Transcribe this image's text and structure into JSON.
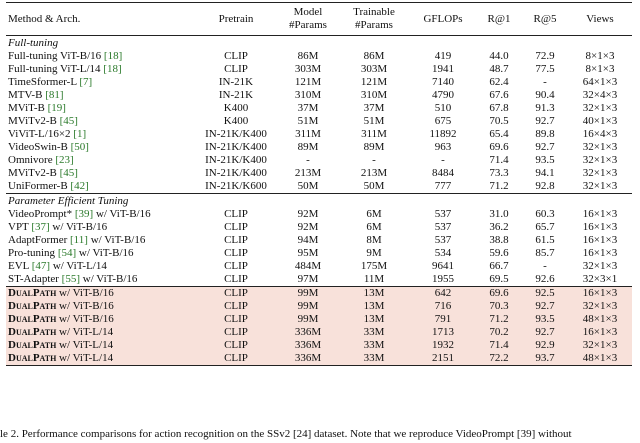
{
  "headers": [
    "Method & Arch.",
    "Pretrain",
    "Model\n#Params",
    "Trainable\n#Params",
    "GFLOPs",
    "R@1",
    "R@5",
    "Views"
  ],
  "sections": [
    {
      "title": "Full-tuning",
      "rows": [
        {
          "m": "Full-tuning ViT-B/16 ",
          "ref": "[18]",
          "pt": "CLIP",
          "mp": "86M",
          "tp": "86M",
          "gf": "419",
          "r1": "44.0",
          "r5": "72.9",
          "v": "8×1×3"
        },
        {
          "m": "Full-tuning ViT-L/14 ",
          "ref": "[18]",
          "pt": "CLIP",
          "mp": "303M",
          "tp": "303M",
          "gf": "1941",
          "r1": "48.7",
          "r5": "77.5",
          "v": "8×1×3"
        },
        {
          "m": "TimeSformer-L ",
          "ref": "[7]",
          "pt": "IN-21K",
          "mp": "121M",
          "tp": "121M",
          "gf": "7140",
          "r1": "62.4",
          "r5": "-",
          "v": "64×1×3"
        },
        {
          "m": "MTV-B ",
          "ref": "[81]",
          "pt": "IN-21K",
          "mp": "310M",
          "tp": "310M",
          "gf": "4790",
          "r1": "67.6",
          "r5": "90.4",
          "v": "32×4×3"
        },
        {
          "m": "MViT-B ",
          "ref": "[19]",
          "pt": "K400",
          "mp": "37M",
          "tp": "37M",
          "gf": "510",
          "r1": "67.8",
          "r5": "91.3",
          "v": "32×1×3"
        },
        {
          "m": "MViTv2-B ",
          "ref": "[45]",
          "pt": "K400",
          "mp": "51M",
          "tp": "51M",
          "gf": "675",
          "r1": "70.5",
          "r5": "92.7",
          "v": "40×1×3"
        },
        {
          "m": "ViViT-L/16×2 ",
          "ref": "[1]",
          "pt": "IN-21K/K400",
          "mp": "311M",
          "tp": "311M",
          "gf": "11892",
          "r1": "65.4",
          "r5": "89.8",
          "v": "16×4×3"
        },
        {
          "m": "VideoSwin-B ",
          "ref": "[50]",
          "pt": "IN-21K/K400",
          "mp": "89M",
          "tp": "89M",
          "gf": "963",
          "r1": "69.6",
          "r5": "92.7",
          "v": "32×1×3"
        },
        {
          "m": "Omnivore ",
          "ref": "[23]",
          "pt": "IN-21K/K400",
          "mp": "-",
          "tp": "-",
          "gf": "-",
          "r1": "71.4",
          "r5": "93.5",
          "v": "32×1×3"
        },
        {
          "m": "MViTv2-B ",
          "ref": "[45]",
          "pt": "IN-21K/K400",
          "mp": "213M",
          "tp": "213M",
          "gf": "8484",
          "r1": "73.3",
          "r5": "94.1",
          "v": "32×1×3"
        },
        {
          "m": "UniFormer-B ",
          "ref": "[42]",
          "pt": "IN-21K/K600",
          "mp": "50M",
          "tp": "50M",
          "gf": "777",
          "r1": "71.2",
          "r5": "92.8",
          "v": "32×1×3"
        }
      ]
    },
    {
      "title": "Parameter Efficient Tuning",
      "rows": [
        {
          "m": "VideoPrompt* ",
          "ref": "[39]",
          "suf": " w/ ViT-B/16",
          "pt": "CLIP",
          "mp": "92M",
          "tp": "6M",
          "gf": "537",
          "r1": "31.0",
          "r5": "60.3",
          "v": "16×1×3"
        },
        {
          "m": "VPT ",
          "ref": "[37]",
          "suf": " w/ ViT-B/16",
          "pt": "CLIP",
          "mp": "92M",
          "tp": "6M",
          "gf": "537",
          "r1": "36.2",
          "r5": "65.7",
          "v": "16×1×3"
        },
        {
          "m": "AdaptFormer ",
          "ref": "[11]",
          "suf": " w/ ViT-B/16",
          "pt": "CLIP",
          "mp": "94M",
          "tp": "8M",
          "gf": "537",
          "r1": "38.8",
          "r5": "61.5",
          "v": "16×1×3"
        },
        {
          "m": "Pro-tuning ",
          "ref": "[54]",
          "suf": " w/ ViT-B/16",
          "pt": "CLIP",
          "mp": "95M",
          "tp": "9M",
          "gf": "534",
          "r1": "59.6",
          "r5": "85.7",
          "v": "16×1×3"
        },
        {
          "m": "EVL ",
          "ref": "[47]",
          "suf": " w/ ViT-L/14",
          "pt": "CLIP",
          "mp": "484M",
          "tp": "175M",
          "gf": "9641",
          "r1": "66.7",
          "r5": "-",
          "v": "32×1×3"
        },
        {
          "m": "ST-Adapter ",
          "ref": "[55]",
          "suf": " w/ ViT-B/16",
          "pt": "CLIP",
          "mp": "97M",
          "tp": "11M",
          "gf": "1955",
          "r1": "69.5",
          "r5": "92.6",
          "v": "32×3×1"
        }
      ]
    },
    {
      "title": "",
      "rows": [
        {
          "m": "DualPath",
          "suf": " w/ ViT-B/16",
          "pt": "CLIP",
          "mp": "99M",
          "tp": "13M",
          "gf": "642",
          "r1": "69.6",
          "r5": "92.5",
          "v": "16×1×3"
        },
        {
          "m": "DualPath",
          "suf": " w/ ViT-B/16",
          "pt": "CLIP",
          "mp": "99M",
          "tp": "13M",
          "gf": "716",
          "r1": "70.3",
          "r5": "92.7",
          "v": "32×1×3"
        },
        {
          "m": "DualPath",
          "suf": " w/ ViT-B/16",
          "pt": "CLIP",
          "mp": "99M",
          "tp": "13M",
          "gf": "791",
          "r1": "71.2",
          "r5": "93.5",
          "v": "48×1×3"
        },
        {
          "m": "DualPath",
          "suf": " w/ ViT-L/14",
          "pt": "CLIP",
          "mp": "336M",
          "tp": "33M",
          "gf": "1713",
          "r1": "70.2",
          "r5": "92.7",
          "v": "16×1×3"
        },
        {
          "m": "DualPath",
          "suf": " w/ ViT-L/14",
          "pt": "CLIP",
          "mp": "336M",
          "tp": "33M",
          "gf": "1932",
          "r1": "71.4",
          "r5": "92.9",
          "v": "32×1×3"
        },
        {
          "m": "DualPath",
          "suf": " w/ ViT-L/14",
          "pt": "CLIP",
          "mp": "336M",
          "tp": "33M",
          "gf": "2151",
          "r1": "72.2",
          "r5": "93.7",
          "v": "48×1×3"
        }
      ]
    }
  ],
  "caption": "le 2. Performance comparisons for action recognition on the SSv2 [24] dataset. Note that we reproduce VideoPrompt [39] without"
}
